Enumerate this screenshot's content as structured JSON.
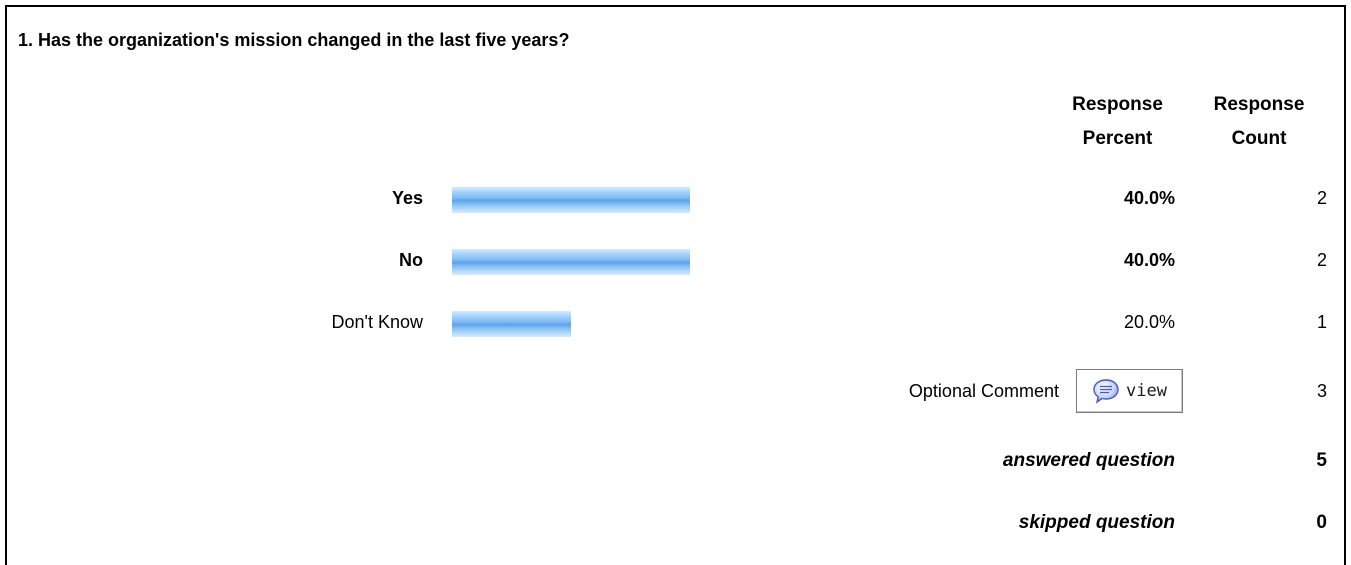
{
  "question": {
    "title": "1. Has the organization's mission changed in the last five years?"
  },
  "columns": {
    "percent_line1": "Response",
    "percent_line2": "Percent",
    "count_line1": "Response",
    "count_line2": "Count"
  },
  "chart_data": {
    "type": "bar",
    "orientation": "horizontal",
    "categories": [
      "Yes",
      "No",
      "Don't Know"
    ],
    "values": [
      40.0,
      40.0,
      20.0
    ],
    "counts": [
      2,
      2,
      1
    ],
    "value_labels": [
      "40.0%",
      "40.0%",
      "20.0%"
    ],
    "count_labels": [
      "2",
      "2",
      "1"
    ],
    "bold": [
      true,
      true,
      false
    ],
    "xlim": [
      0,
      100
    ],
    "bar_color": "#7fbaf3"
  },
  "comment": {
    "label": "Optional Comment",
    "button_label": "view",
    "button_icon": "speech-bubble-icon",
    "count": "3"
  },
  "summary": {
    "answered_label": "answered question",
    "answered_value": "5",
    "skipped_label": "skipped question",
    "skipped_value": "0"
  }
}
